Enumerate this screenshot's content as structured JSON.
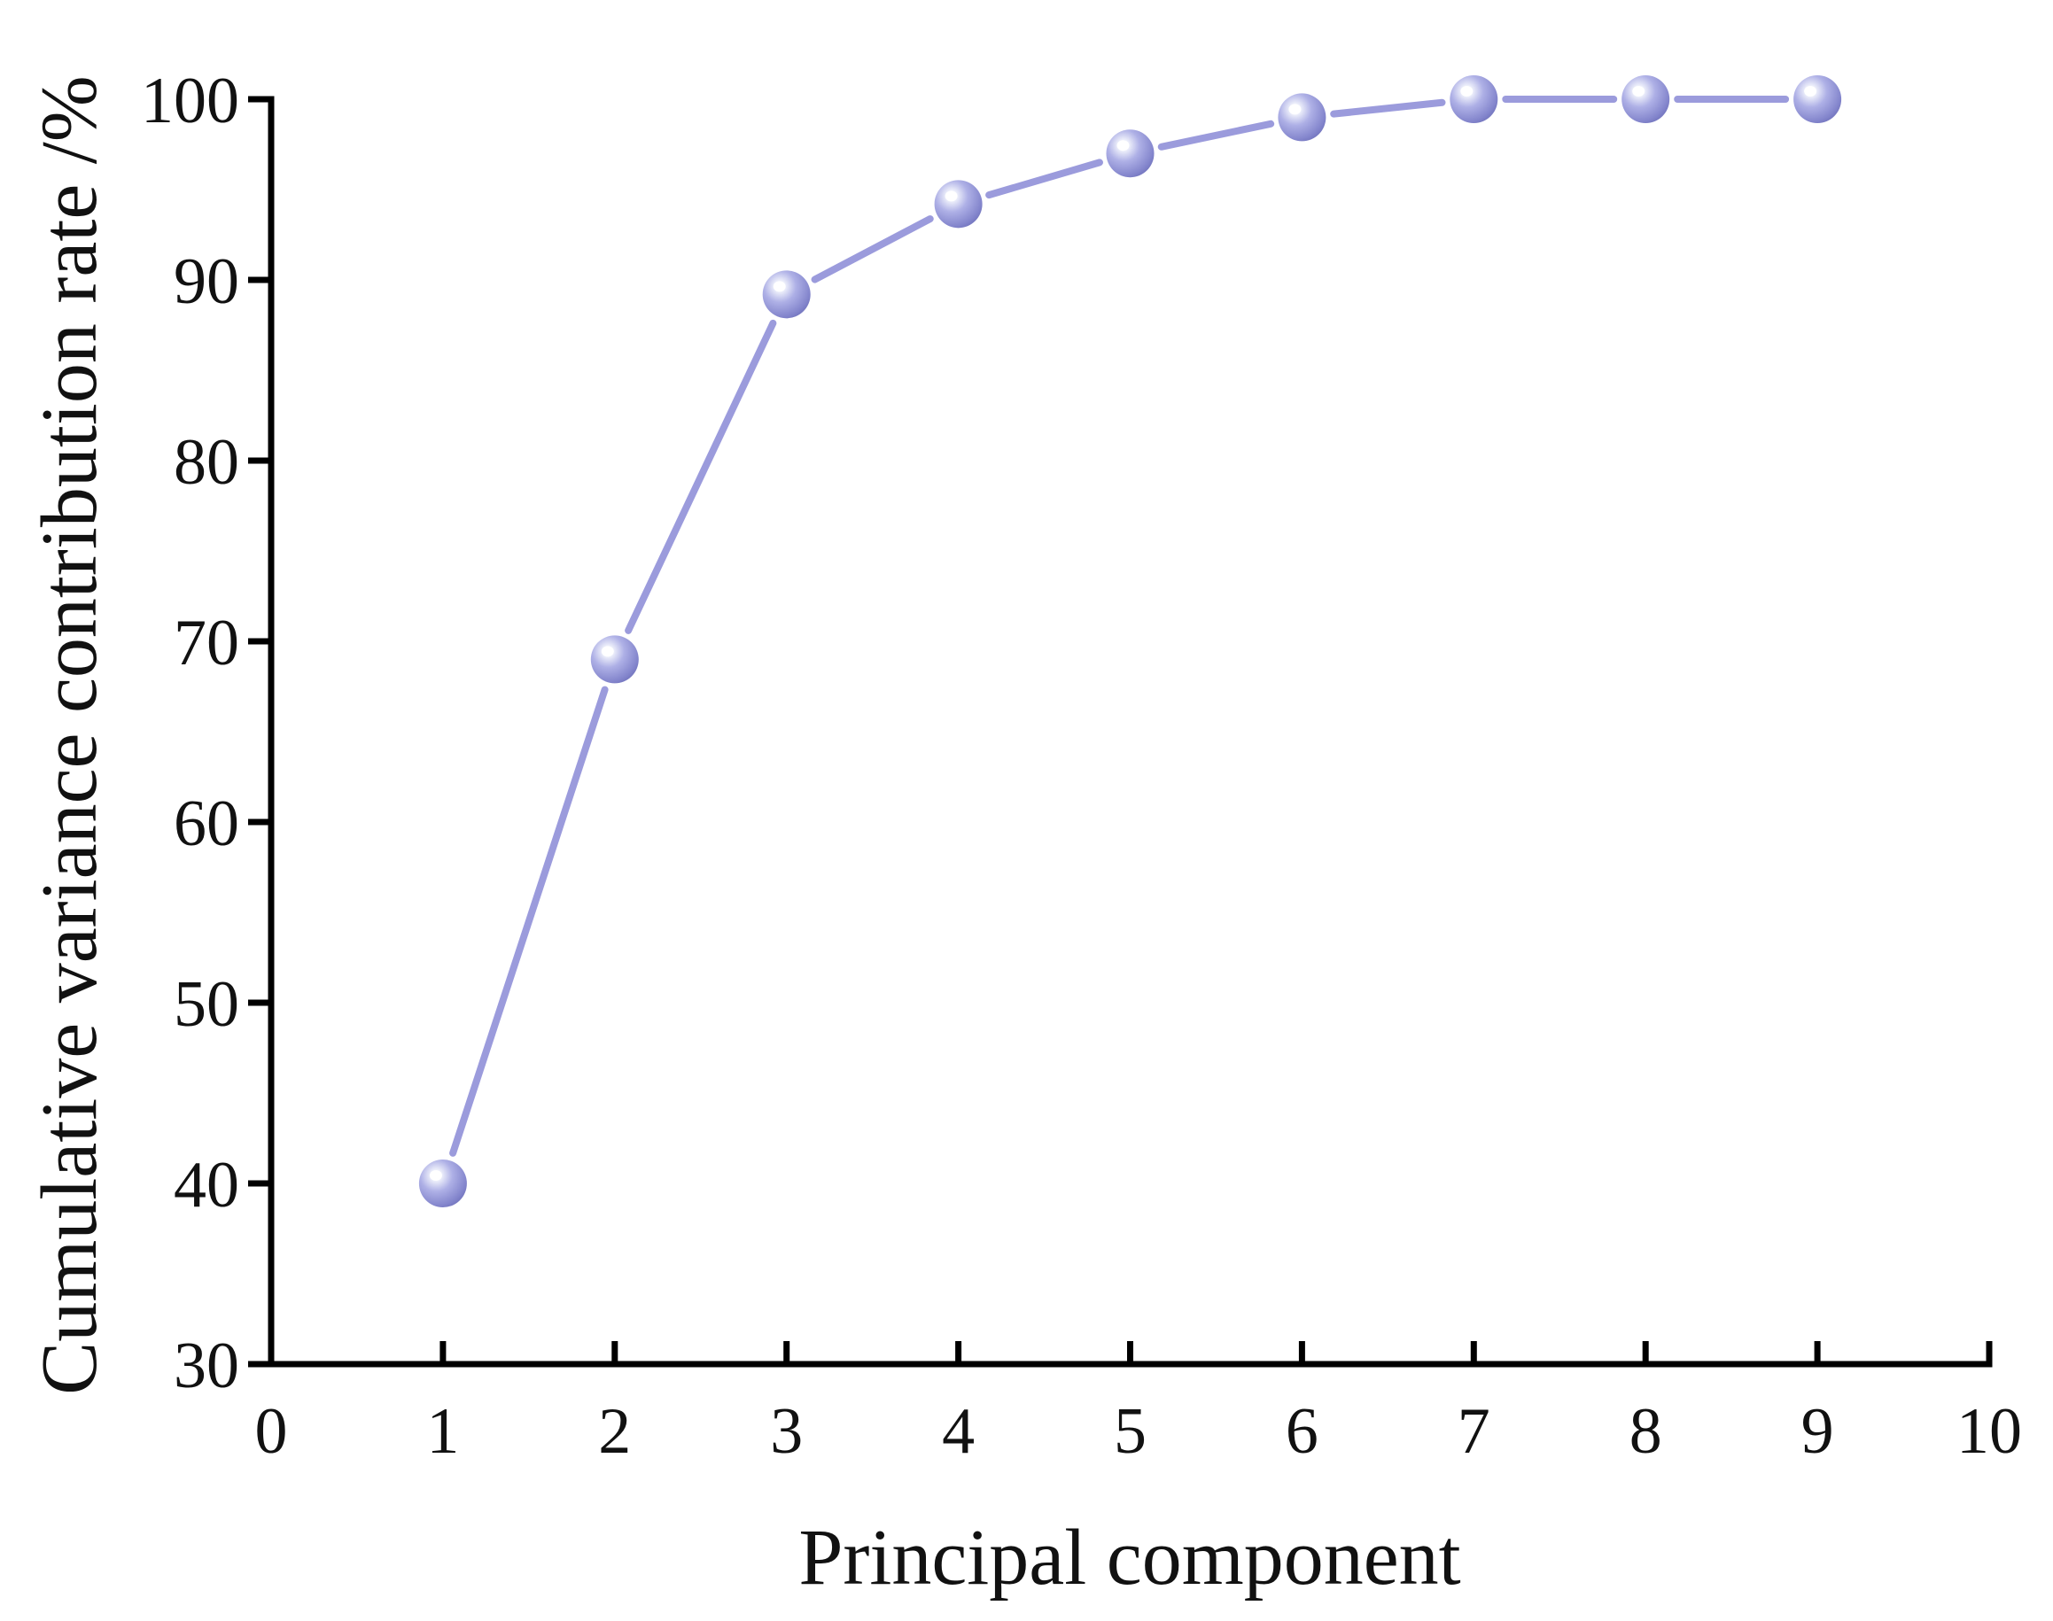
{
  "chart_data": {
    "type": "line",
    "title": "",
    "xlabel": "Principal component",
    "ylabel": "Cumulative variance contribution rate /%",
    "xlim": [
      0,
      10
    ],
    "ylim": [
      30,
      100
    ],
    "x_ticks": [
      "0",
      "1",
      "2",
      "3",
      "4",
      "5",
      "6",
      "7",
      "8",
      "9",
      "10"
    ],
    "y_ticks": [
      "30",
      "40",
      "50",
      "60",
      "70",
      "80",
      "90",
      "100"
    ],
    "grid": false,
    "legend": "none",
    "series": [
      {
        "color": "#9b9bdc",
        "marker": "sphere",
        "x": [
          1,
          2,
          3,
          4,
          5,
          6,
          7,
          8,
          9
        ],
        "y": [
          40.0,
          69.0,
          89.2,
          94.2,
          97.0,
          99.0,
          100.0,
          100.0,
          100.0
        ]
      }
    ]
  }
}
